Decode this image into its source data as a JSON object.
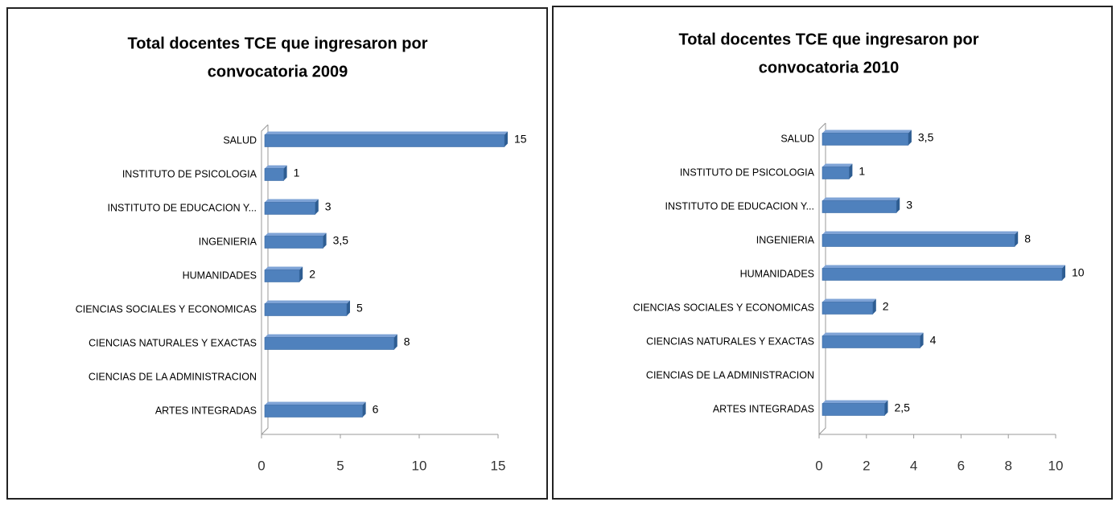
{
  "chart_data": [
    {
      "type": "bar",
      "orientation": "horizontal",
      "title": [
        "Total docentes TCE que ingresaron por",
        "convocatoria 2009"
      ],
      "categories": [
        "SALUD",
        "INSTITUTO DE PSICOLOGIA",
        "INSTITUTO DE EDUCACION Y...",
        "INGENIERIA",
        "HUMANIDADES",
        "CIENCIAS SOCIALES Y ECONOMICAS",
        "CIENCIAS NATURALES Y EXACTAS",
        "CIENCIAS DE LA ADMINISTRACION",
        "ARTES INTEGRADAS"
      ],
      "values": [
        15,
        1,
        3,
        3.5,
        2,
        5,
        8,
        null,
        6
      ],
      "value_labels": [
        "15",
        "1",
        "3",
        "3,5",
        "2",
        "5",
        "8",
        null,
        "6"
      ],
      "color": "#4f81bd",
      "xlim": [
        0,
        15
      ],
      "xticks": [
        0,
        5,
        10,
        15
      ]
    },
    {
      "type": "bar",
      "orientation": "horizontal",
      "title": [
        "Total docentes TCE que ingresaron por",
        "convocatoria 2010"
      ],
      "categories": [
        "SALUD",
        "INSTITUTO DE PSICOLOGIA",
        "INSTITUTO DE EDUCACION Y...",
        "INGENIERIA",
        "HUMANIDADES",
        "CIENCIAS SOCIALES Y ECONOMICAS",
        "CIENCIAS NATURALES Y EXACTAS",
        "CIENCIAS DE LA ADMINISTRACION",
        "ARTES INTEGRADAS"
      ],
      "values": [
        3.5,
        1,
        3,
        8,
        10,
        2,
        4,
        null,
        2.5
      ],
      "value_labels": [
        "3,5",
        "1",
        "3",
        "8",
        "10",
        "2",
        "4",
        null,
        "2,5"
      ],
      "color": "#4f81bd",
      "xlim": [
        0,
        10
      ],
      "xticks": [
        0,
        2,
        4,
        6,
        8,
        10
      ]
    }
  ]
}
